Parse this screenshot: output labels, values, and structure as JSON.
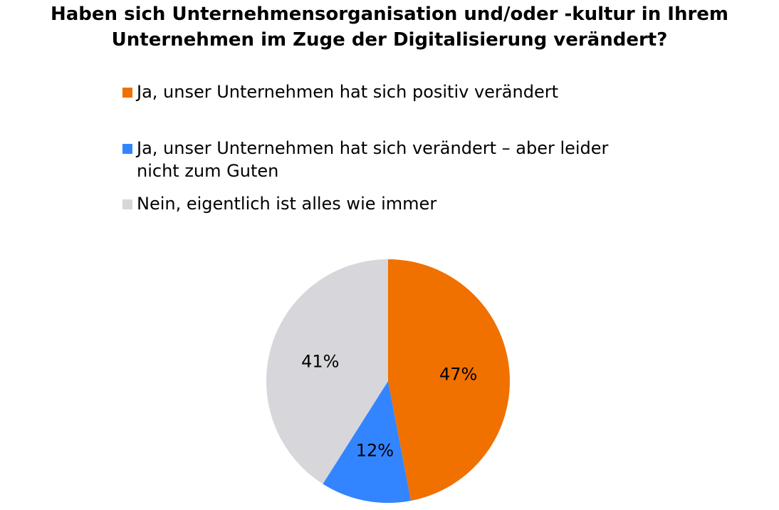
{
  "chart_data": {
    "type": "pie",
    "title_lines": [
      "Haben sich Unternehmensorganisation und/oder -kultur in Ihrem",
      "Unternehmen im Zuge der Digitalisierung verändert?"
    ],
    "slices": [
      {
        "legend_lines": [
          "Ja, unser Unternehmen hat sich positiv verändert"
        ],
        "value": 47,
        "label": "47%",
        "color": "#F07000"
      },
      {
        "legend_lines": [
          "Ja, unser Unternehmen hat sich verändert – aber leider",
          "nicht zum Guten"
        ],
        "value": 12,
        "label": "12%",
        "color": "#3385FF"
      },
      {
        "legend_lines": [
          "Nein, eigentlich ist alles wie immer"
        ],
        "value": 41,
        "label": "41%",
        "color": "#D6D6DB"
      }
    ],
    "legend_position": "top",
    "start": "12-o-clock",
    "direction": "clockwise"
  }
}
